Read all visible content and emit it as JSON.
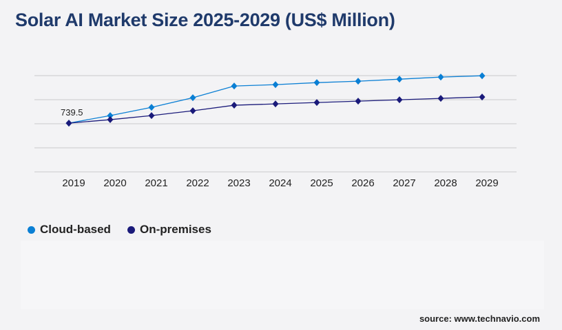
{
  "title": "Solar AI Market Size 2025-2029 (US$ Million)",
  "source": "source: www.technavio.com",
  "chart_data": {
    "type": "line",
    "title": "Solar AI Market Size 2025-2029 (US$ Million)",
    "categories": [
      "2019",
      "2020",
      "2021",
      "2022",
      "2023",
      "2024",
      "2025",
      "2026",
      "2027",
      "2028",
      "2029"
    ],
    "series": [
      {
        "name": "Cloud-based",
        "color": "#0a7fd4",
        "values": [
          739.5,
          854,
          979,
          1125,
          1302,
          1323,
          1354,
          1375,
          1406,
          1438,
          1458
        ]
      },
      {
        "name": "On-premises",
        "color": "#1a1a7a",
        "values": [
          739.5,
          792,
          854,
          927,
          1011,
          1031,
          1052,
          1073,
          1094,
          1115,
          1136
        ]
      }
    ],
    "annotations": [
      {
        "category": "2019",
        "text": "739.5"
      }
    ],
    "ylim": [
      0,
      1460
    ],
    "grid": true,
    "legend": "bottom-left"
  }
}
